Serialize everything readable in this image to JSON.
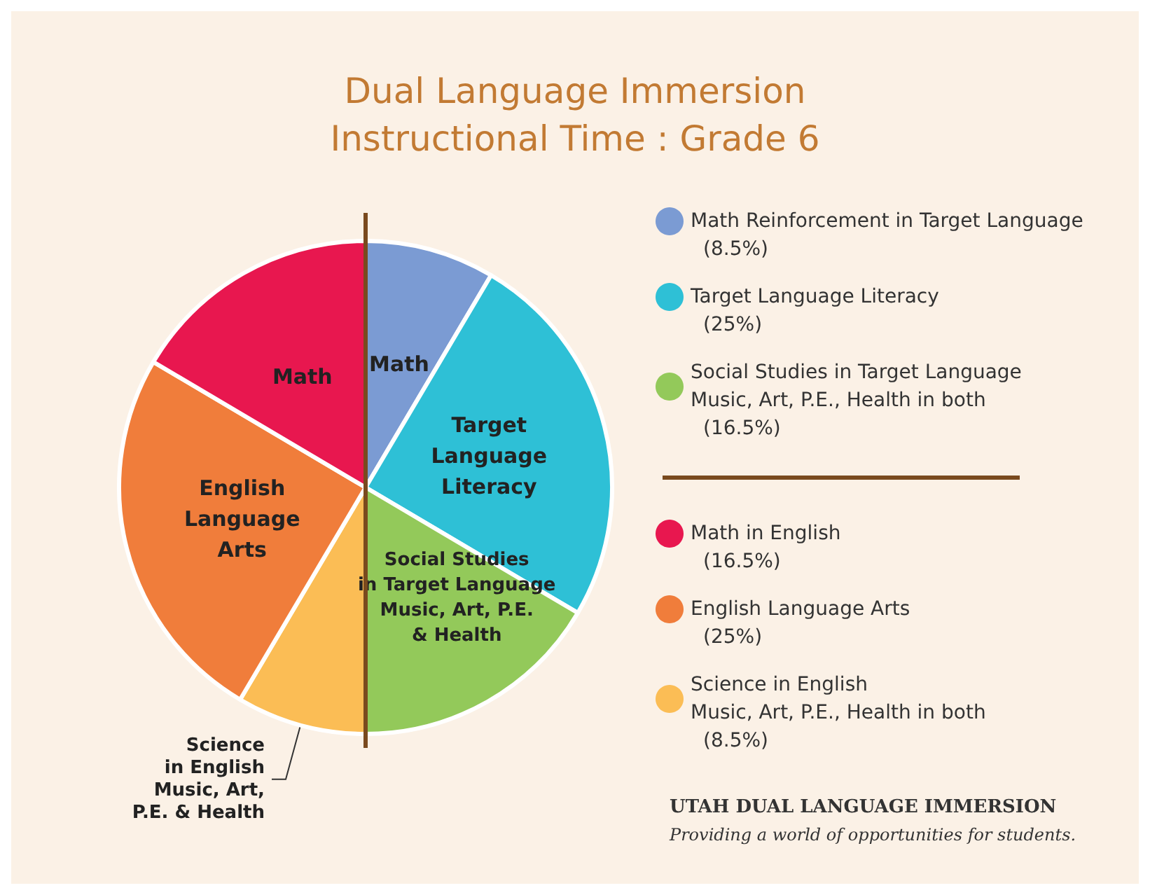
{
  "chart_data": {
    "type": "pie",
    "title": "Dual Language Immersion\nInstructional Time : Grade 6",
    "categories": [
      "Math Reinforcement in Target Language",
      "Target Language Literacy",
      "Social Studies in Target Language\nMusic, Art, P.E., Health in both",
      "Science in English\nMusic, Art, P.E., Health in both",
      "English Language Arts",
      "Math in English"
    ],
    "values": [
      8.5,
      25,
      16.5,
      8.5,
      25,
      16.5
    ],
    "value_labels": [
      "(8.5%)",
      "(25%)",
      "(16.5%)",
      "(8.5%)",
      "(25%)",
      "(16.5%)"
    ],
    "colors": [
      "#7b9bd3",
      "#2ec0d6",
      "#93c95a",
      "#fbbd55",
      "#f07d3b",
      "#e8174f"
    ],
    "legend": "right",
    "annotations": [
      {
        "text": "Math",
        "x": "Math Reinforcement in Target Language"
      },
      {
        "text": "Target\nLanguage\nLiteracy",
        "x": "Target Language Literacy"
      },
      {
        "text": "Social Studies\nin Target Language\nMusic, Art, P.E.\n& Health",
        "x": "Social Studies in Target Language\nMusic, Art, P.E., Health in both"
      },
      {
        "text": "Science\nin English\nMusic, Art,\nP.E. & Health",
        "x": "Science in English\nMusic, Art, P.E., Health in both"
      },
      {
        "text": "English\nLanguage\nArts",
        "x": "English Language Arts"
      },
      {
        "text": "Math",
        "x": "Math in English"
      },
      "UTAH DUAL LANGUAGE IMMERSION",
      "Providing a world of opportunities for students."
    ]
  }
}
